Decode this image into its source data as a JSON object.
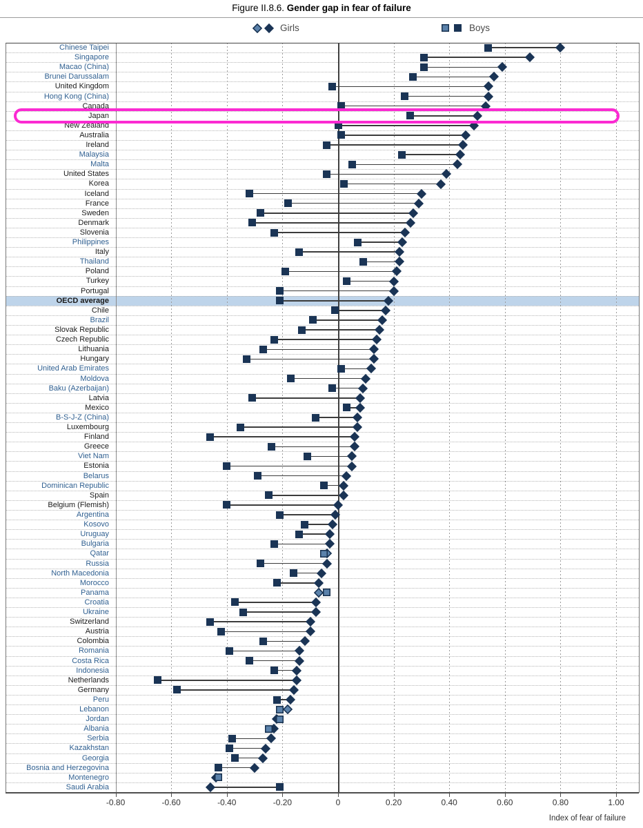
{
  "title": {
    "prefix": "Figure II.8.6.",
    "bold": "Gender gap in fear of failure"
  },
  "legend": {
    "girls": {
      "label": "Girls"
    },
    "boys": {
      "label": "Boys"
    }
  },
  "axis": {
    "label": "Index of fear of failure",
    "tick_values": [
      -0.8,
      -0.6,
      -0.4,
      -0.2,
      0,
      0.2,
      0.4,
      0.6,
      0.8,
      1.0
    ],
    "tick_labels": [
      "-0.80",
      "-0.60",
      "-0.40",
      "-0.20",
      "0",
      "0.20",
      "0.40",
      "0.60",
      "0.80",
      "1.00"
    ]
  },
  "colors": {
    "dark_marker": "#1a3455",
    "light_marker": "#5b82ab",
    "partner_label": "#2f5f90",
    "oecd_label": "#1a1a1a",
    "shaded_band": "#bed4ea",
    "highlight": "#fb2ad2"
  },
  "annotations": {
    "highlighted_row": "Japan",
    "shaded_row": "OECD average"
  },
  "chart_data": {
    "type": "dumbbell",
    "title": "Gender gap in fear of failure",
    "xlabel": "Index of fear of failure",
    "xlim": [
      -0.8,
      1.0
    ],
    "grid": "dashed-vertical",
    "legend_entries": [
      "Girls",
      "Boys"
    ],
    "series_note": "girls = diamond, boys = square; light markers = light blue fill",
    "rows": [
      {
        "label": "Chinese Taipei",
        "girls": 0.8,
        "boys": 0.54,
        "partner": true
      },
      {
        "label": "Singapore",
        "girls": 0.69,
        "boys": 0.31,
        "partner": true
      },
      {
        "label": "Macao (China)",
        "girls": 0.59,
        "boys": 0.31,
        "partner": true
      },
      {
        "label": "Brunei Darussalam",
        "girls": 0.56,
        "boys": 0.27,
        "partner": true
      },
      {
        "label": "United Kingdom",
        "girls": 0.54,
        "boys": -0.02
      },
      {
        "label": "Hong Kong (China)",
        "girls": 0.54,
        "boys": 0.24,
        "partner": true
      },
      {
        "label": "Canada",
        "girls": 0.53,
        "boys": 0.01
      },
      {
        "label": "Japan",
        "girls": 0.5,
        "boys": 0.26,
        "highlighted": true
      },
      {
        "label": "New Zealand",
        "girls": 0.49,
        "boys": 0.0
      },
      {
        "label": "Australia",
        "girls": 0.46,
        "boys": 0.01
      },
      {
        "label": "Ireland",
        "girls": 0.45,
        "boys": -0.04
      },
      {
        "label": "Malaysia",
        "girls": 0.44,
        "boys": 0.23,
        "partner": true
      },
      {
        "label": "Malta",
        "girls": 0.43,
        "boys": 0.05,
        "partner": true
      },
      {
        "label": "United States",
        "girls": 0.39,
        "boys": -0.04
      },
      {
        "label": "Korea",
        "girls": 0.37,
        "boys": 0.02
      },
      {
        "label": "Iceland",
        "girls": 0.3,
        "boys": -0.32
      },
      {
        "label": "France",
        "girls": 0.29,
        "boys": -0.18
      },
      {
        "label": "Sweden",
        "girls": 0.27,
        "boys": -0.28
      },
      {
        "label": "Denmark",
        "girls": 0.26,
        "boys": -0.31
      },
      {
        "label": "Slovenia",
        "girls": 0.24,
        "boys": -0.23
      },
      {
        "label": "Philippines",
        "girls": 0.23,
        "boys": 0.07,
        "partner": true
      },
      {
        "label": "Italy",
        "girls": 0.22,
        "boys": -0.14
      },
      {
        "label": "Thailand",
        "girls": 0.22,
        "boys": 0.09,
        "partner": true
      },
      {
        "label": "Poland",
        "girls": 0.21,
        "boys": -0.19
      },
      {
        "label": "Turkey",
        "girls": 0.2,
        "boys": 0.03
      },
      {
        "label": "Portugal",
        "girls": 0.2,
        "boys": -0.21
      },
      {
        "label": "OECD average",
        "girls": 0.18,
        "boys": -0.21,
        "bold": true,
        "shaded": true
      },
      {
        "label": "Chile",
        "girls": 0.17,
        "boys": -0.01
      },
      {
        "label": "Brazil",
        "girls": 0.16,
        "boys": -0.09,
        "partner": true
      },
      {
        "label": "Slovak Republic",
        "girls": 0.15,
        "boys": -0.13
      },
      {
        "label": "Czech Republic",
        "girls": 0.14,
        "boys": -0.23
      },
      {
        "label": "Lithuania",
        "girls": 0.13,
        "boys": -0.27
      },
      {
        "label": "Hungary",
        "girls": 0.13,
        "boys": -0.33
      },
      {
        "label": "United Arab Emirates",
        "girls": 0.12,
        "boys": 0.01,
        "partner": true
      },
      {
        "label": "Moldova",
        "girls": 0.1,
        "boys": -0.17,
        "partner": true
      },
      {
        "label": "Baku (Azerbaijan)",
        "girls": 0.09,
        "boys": -0.02,
        "partner": true
      },
      {
        "label": "Latvia",
        "girls": 0.08,
        "boys": -0.31
      },
      {
        "label": "Mexico",
        "girls": 0.08,
        "boys": 0.03
      },
      {
        "label": "B-S-J-Z (China)",
        "girls": 0.07,
        "boys": -0.08,
        "partner": true
      },
      {
        "label": "Luxembourg",
        "girls": 0.07,
        "boys": -0.35
      },
      {
        "label": "Finland",
        "girls": 0.06,
        "boys": -0.46
      },
      {
        "label": "Greece",
        "girls": 0.06,
        "boys": -0.24
      },
      {
        "label": "Viet Nam",
        "girls": 0.05,
        "boys": -0.11,
        "partner": true
      },
      {
        "label": "Estonia",
        "girls": 0.05,
        "boys": -0.4
      },
      {
        "label": "Belarus",
        "girls": 0.03,
        "boys": -0.29,
        "partner": true
      },
      {
        "label": "Dominican Republic",
        "girls": 0.02,
        "boys": -0.05,
        "partner": true
      },
      {
        "label": "Spain",
        "girls": 0.02,
        "boys": -0.25
      },
      {
        "label": "Belgium (Flemish)",
        "girls": 0.0,
        "boys": -0.4
      },
      {
        "label": "Argentina",
        "girls": -0.01,
        "boys": -0.21,
        "partner": true
      },
      {
        "label": "Kosovo",
        "girls": -0.02,
        "boys": -0.12,
        "partner": true
      },
      {
        "label": "Uruguay",
        "girls": -0.03,
        "boys": -0.14,
        "partner": true
      },
      {
        "label": "Bulgaria",
        "girls": -0.03,
        "boys": -0.23,
        "partner": true
      },
      {
        "label": "Qatar",
        "girls": -0.04,
        "boys": -0.05,
        "partner": true,
        "girls_light": true,
        "boys_light": true
      },
      {
        "label": "Russia",
        "girls": -0.04,
        "boys": -0.28,
        "partner": true
      },
      {
        "label": "North Macedonia",
        "girls": -0.06,
        "boys": -0.16,
        "partner": true
      },
      {
        "label": "Morocco",
        "girls": -0.07,
        "boys": -0.22,
        "partner": true
      },
      {
        "label": "Panama",
        "girls": -0.07,
        "boys": -0.04,
        "partner": true,
        "girls_light": true,
        "boys_light": true
      },
      {
        "label": "Croatia",
        "girls": -0.08,
        "boys": -0.37,
        "partner": true
      },
      {
        "label": "Ukraine",
        "girls": -0.08,
        "boys": -0.34,
        "partner": true
      },
      {
        "label": "Switzerland",
        "girls": -0.1,
        "boys": -0.46
      },
      {
        "label": "Austria",
        "girls": -0.1,
        "boys": -0.42
      },
      {
        "label": "Colombia",
        "girls": -0.12,
        "boys": -0.27
      },
      {
        "label": "Romania",
        "girls": -0.14,
        "boys": -0.39,
        "partner": true
      },
      {
        "label": "Costa Rica",
        "girls": -0.14,
        "boys": -0.32,
        "partner": true
      },
      {
        "label": "Indonesia",
        "girls": -0.15,
        "boys": -0.23,
        "partner": true
      },
      {
        "label": "Netherlands",
        "girls": -0.15,
        "boys": -0.65
      },
      {
        "label": "Germany",
        "girls": -0.16,
        "boys": -0.58
      },
      {
        "label": "Peru",
        "girls": -0.17,
        "boys": -0.22,
        "partner": true
      },
      {
        "label": "Lebanon",
        "girls": -0.18,
        "boys": -0.21,
        "partner": true,
        "girls_light": true,
        "boys_light": true
      },
      {
        "label": "Jordan",
        "girls": -0.22,
        "boys": -0.21,
        "partner": true,
        "boys_light": true
      },
      {
        "label": "Albania",
        "girls": -0.23,
        "boys": -0.25,
        "partner": true,
        "boys_light": true
      },
      {
        "label": "Serbia",
        "girls": -0.24,
        "boys": -0.38,
        "partner": true
      },
      {
        "label": "Kazakhstan",
        "girls": -0.26,
        "boys": -0.39,
        "partner": true
      },
      {
        "label": "Georgia",
        "girls": -0.27,
        "boys": -0.37,
        "partner": true
      },
      {
        "label": "Bosnia and Herzegovina",
        "girls": -0.3,
        "boys": -0.43,
        "partner": true
      },
      {
        "label": "Montenegro",
        "girls": -0.44,
        "boys": -0.43,
        "partner": true,
        "boys_light": true
      },
      {
        "label": "Saudi Arabia",
        "girls": -0.46,
        "boys": -0.21,
        "partner": true
      }
    ]
  }
}
